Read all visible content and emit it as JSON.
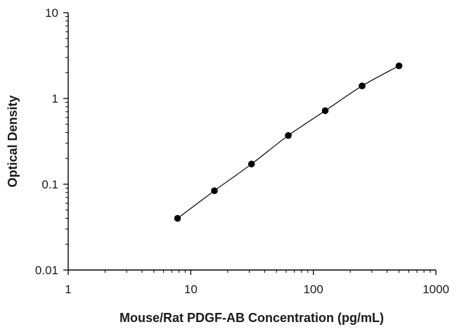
{
  "chart_data": {
    "type": "scatter",
    "title": "",
    "xlabel": "Mouse/Rat PDGF-AB Concentration (pg/mL)",
    "ylabel": "Optical Density",
    "x_scale": "log",
    "y_scale": "log",
    "xlim": [
      1,
      1000
    ],
    "ylim": [
      0.01,
      10
    ],
    "x_ticks": [
      1,
      10,
      100,
      1000
    ],
    "x_tick_labels": [
      "1",
      "10",
      "100",
      "1000"
    ],
    "y_ticks": [
      0.01,
      0.1,
      1,
      10
    ],
    "y_tick_labels": [
      "0.01",
      "0.1",
      "1",
      "10"
    ],
    "grid": false,
    "legend": "none",
    "series": [
      {
        "x": [
          7.8,
          15.6,
          31.3,
          62.5,
          125,
          250,
          500
        ],
        "y": [
          0.04,
          0.084,
          0.172,
          0.37,
          0.72,
          1.4,
          2.4
        ],
        "marker_color": "#000000",
        "line_color": "#000000",
        "fit_line": true
      }
    ]
  }
}
